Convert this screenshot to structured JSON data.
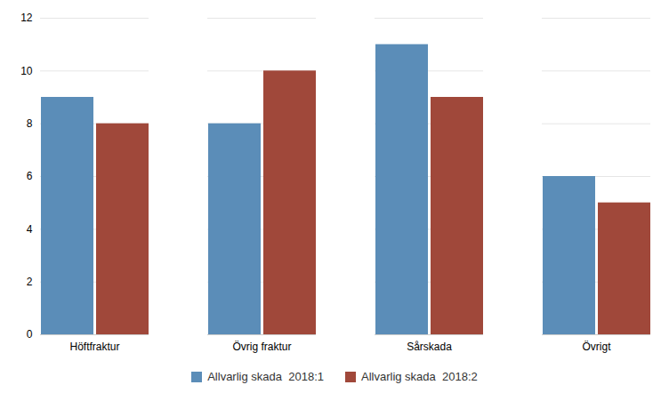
{
  "chart_data": {
    "type": "bar",
    "categories": [
      "Höftfraktur",
      "Övrig fraktur",
      "Sårskada",
      "Övrigt"
    ],
    "series": [
      {
        "name": "Allvarlig skada  2018:1",
        "color": "#5B8DB8",
        "values": [
          9,
          8,
          11,
          6
        ]
      },
      {
        "name": "Allvarlig skada  2018:2",
        "color": "#A0483A",
        "values": [
          8,
          10,
          9,
          5
        ]
      }
    ],
    "ylim": [
      0,
      12
    ],
    "yticks": [
      0,
      2,
      4,
      6,
      8,
      10,
      12
    ],
    "grid": true,
    "legend": "bottom"
  }
}
